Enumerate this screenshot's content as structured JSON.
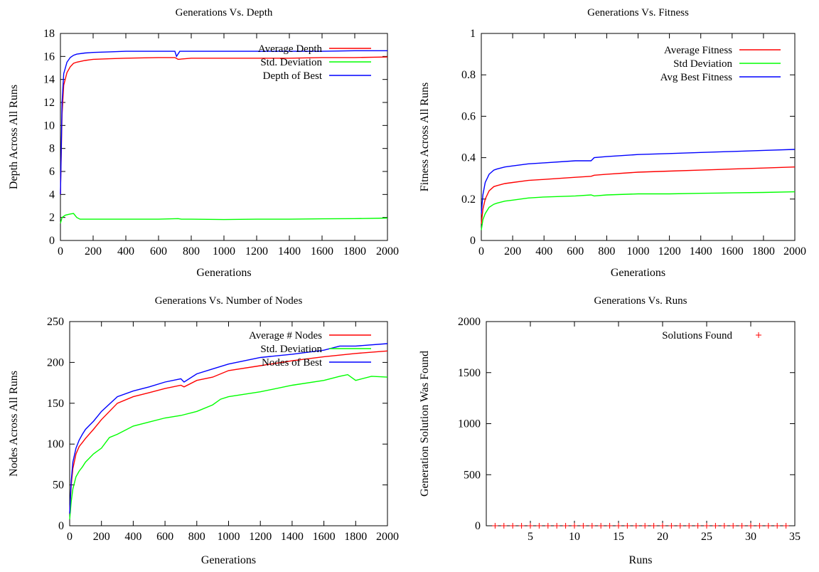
{
  "chart_data": [
    {
      "type": "line",
      "title": "Generations Vs. Depth",
      "xlabel": "Generations",
      "ylabel": "Depth Across All Runs",
      "xlim": [
        0,
        2000
      ],
      "ylim": [
        0,
        18
      ],
      "xticks": [
        0,
        200,
        400,
        600,
        800,
        1000,
        1200,
        1400,
        1600,
        1800,
        2000
      ],
      "yticks": [
        0,
        2,
        4,
        6,
        8,
        10,
        12,
        14,
        16,
        18
      ],
      "grid": false,
      "legend_position": "top-right",
      "series": [
        {
          "name": "Average Depth",
          "color": "#ff0000",
          "x": [
            0,
            10,
            20,
            40,
            60,
            80,
            100,
            150,
            200,
            300,
            400,
            600,
            700,
            720,
            800,
            1000,
            1200,
            1400,
            1600,
            1800,
            2000
          ],
          "y": [
            4,
            11,
            13.5,
            14.6,
            15.1,
            15.4,
            15.5,
            15.65,
            15.75,
            15.8,
            15.85,
            15.9,
            15.9,
            15.75,
            15.85,
            15.85,
            15.85,
            15.85,
            15.9,
            15.9,
            15.95
          ]
        },
        {
          "name": "Std. Deviation",
          "color": "#00ff00",
          "x": [
            0,
            10,
            30,
            60,
            80,
            100,
            120,
            200,
            400,
            600,
            720,
            740,
            800,
            1000,
            1200,
            1400,
            1600,
            1800,
            2000
          ],
          "y": [
            1.5,
            2.0,
            2.2,
            2.3,
            2.35,
            2.0,
            1.85,
            1.85,
            1.85,
            1.85,
            1.9,
            1.85,
            1.85,
            1.82,
            1.85,
            1.85,
            1.88,
            1.9,
            1.95
          ]
        },
        {
          "name": "Depth of Best",
          "color": "#0000ff",
          "x": [
            0,
            10,
            20,
            40,
            60,
            80,
            100,
            150,
            200,
            300,
            400,
            600,
            700,
            710,
            730,
            800,
            1000,
            1200,
            1400,
            1600,
            1800,
            2000
          ],
          "y": [
            4,
            12,
            14.5,
            15.5,
            15.9,
            16.1,
            16.2,
            16.3,
            16.35,
            16.4,
            16.45,
            16.45,
            16.45,
            16.0,
            16.45,
            16.45,
            16.45,
            16.45,
            16.45,
            16.45,
            16.5,
            16.5
          ]
        }
      ]
    },
    {
      "type": "line",
      "title": "Generations Vs. Fitness",
      "xlabel": "Generations",
      "ylabel": "Fitness Across All Runs",
      "xlim": [
        0,
        2000
      ],
      "ylim": [
        0,
        1
      ],
      "xticks": [
        0,
        200,
        400,
        600,
        800,
        1000,
        1200,
        1400,
        1600,
        1800,
        2000
      ],
      "yticks": [
        0,
        0.2,
        0.4,
        0.6,
        0.8,
        1
      ],
      "grid": false,
      "legend_position": "top-right",
      "series": [
        {
          "name": "Average Fitness",
          "color": "#ff0000",
          "x": [
            0,
            10,
            25,
            50,
            80,
            100,
            150,
            200,
            300,
            400,
            600,
            700,
            720,
            800,
            1000,
            1200,
            1400,
            1600,
            1800,
            2000
          ],
          "y": [
            0.08,
            0.15,
            0.2,
            0.24,
            0.26,
            0.265,
            0.275,
            0.28,
            0.29,
            0.295,
            0.305,
            0.31,
            0.315,
            0.32,
            0.33,
            0.335,
            0.34,
            0.345,
            0.35,
            0.355
          ]
        },
        {
          "name": "Std Deviation",
          "color": "#00ff00",
          "x": [
            0,
            10,
            25,
            50,
            80,
            100,
            150,
            200,
            300,
            400,
            600,
            700,
            720,
            800,
            1000,
            1200,
            1400,
            1600,
            1800,
            2000
          ],
          "y": [
            0.05,
            0.1,
            0.13,
            0.16,
            0.175,
            0.18,
            0.19,
            0.195,
            0.205,
            0.21,
            0.215,
            0.22,
            0.215,
            0.22,
            0.225,
            0.225,
            0.228,
            0.23,
            0.232,
            0.235
          ]
        },
        {
          "name": "Avg Best Fitness",
          "color": "#0000ff",
          "x": [
            0,
            10,
            25,
            50,
            80,
            100,
            150,
            200,
            300,
            400,
            600,
            700,
            720,
            800,
            1000,
            1200,
            1400,
            1600,
            1800,
            2000
          ],
          "y": [
            0.13,
            0.22,
            0.28,
            0.32,
            0.34,
            0.345,
            0.355,
            0.36,
            0.37,
            0.375,
            0.385,
            0.385,
            0.4,
            0.405,
            0.415,
            0.42,
            0.425,
            0.43,
            0.435,
            0.44
          ]
        }
      ]
    },
    {
      "type": "line",
      "title": "Generations Vs. Number of Nodes",
      "xlabel": "Generations",
      "ylabel": "Nodes Across All Runs",
      "xlim": [
        0,
        2000
      ],
      "ylim": [
        0,
        250
      ],
      "xticks": [
        0,
        200,
        400,
        600,
        800,
        1000,
        1200,
        1400,
        1600,
        1800,
        2000
      ],
      "yticks": [
        0,
        50,
        100,
        150,
        200,
        250
      ],
      "grid": false,
      "legend_position": "top-right",
      "series": [
        {
          "name": "Average # Nodes",
          "color": "#ff0000",
          "x": [
            0,
            10,
            20,
            40,
            60,
            80,
            100,
            150,
            200,
            300,
            400,
            500,
            600,
            700,
            720,
            800,
            900,
            1000,
            1200,
            1400,
            1600,
            1800,
            2000
          ],
          "y": [
            15,
            50,
            70,
            88,
            97,
            102,
            107,
            118,
            130,
            150,
            158,
            163,
            168,
            172,
            170,
            178,
            182,
            190,
            196,
            202,
            207,
            211,
            214
          ]
        },
        {
          "name": "Std. Deviation",
          "color": "#00ff00",
          "x": [
            0,
            10,
            20,
            40,
            60,
            80,
            100,
            150,
            200,
            250,
            300,
            400,
            500,
            600,
            700,
            800,
            900,
            950,
            1000,
            1200,
            1400,
            1600,
            1700,
            1750,
            1800,
            1900,
            2000
          ],
          "y": [
            8,
            30,
            45,
            60,
            67,
            72,
            78,
            88,
            95,
            108,
            112,
            122,
            127,
            132,
            135,
            140,
            148,
            155,
            158,
            164,
            172,
            178,
            183,
            185,
            178,
            183,
            182
          ]
        },
        {
          "name": "Nodes of Best",
          "color": "#0000ff",
          "x": [
            0,
            10,
            20,
            40,
            60,
            80,
            100,
            150,
            200,
            300,
            400,
            500,
            600,
            700,
            720,
            800,
            900,
            1000,
            1200,
            1400,
            1600,
            1700,
            1800,
            2000
          ],
          "y": [
            15,
            55,
            78,
            95,
            105,
            112,
            118,
            128,
            140,
            158,
            165,
            170,
            176,
            180,
            176,
            186,
            192,
            198,
            206,
            210,
            215,
            220,
            220,
            223
          ]
        }
      ]
    },
    {
      "type": "scatter",
      "title": "Generations Vs. Runs",
      "xlabel": "Runs",
      "ylabel": "Generation Solution Was Found",
      "xlim": [
        0,
        35
      ],
      "ylim": [
        0,
        2000
      ],
      "xticks": [
        5,
        10,
        15,
        20,
        25,
        30,
        35
      ],
      "yticks": [
        0,
        500,
        1000,
        1500,
        2000
      ],
      "grid": false,
      "legend_position": "top-right",
      "series": [
        {
          "name": "Solutions Found",
          "color": "#ff0000",
          "x": [
            1,
            2,
            3,
            4,
            5,
            6,
            7,
            8,
            9,
            10,
            11,
            12,
            13,
            14,
            15,
            16,
            17,
            18,
            19,
            20,
            21,
            22,
            23,
            24,
            25,
            26,
            27,
            28,
            29,
            30,
            31,
            32,
            33,
            34
          ],
          "y": [
            0,
            0,
            0,
            0,
            0,
            0,
            0,
            0,
            0,
            0,
            0,
            0,
            0,
            0,
            0,
            0,
            0,
            0,
            0,
            0,
            0,
            0,
            0,
            0,
            0,
            0,
            0,
            0,
            0,
            0,
            0,
            0,
            0,
            0
          ]
        }
      ]
    }
  ]
}
